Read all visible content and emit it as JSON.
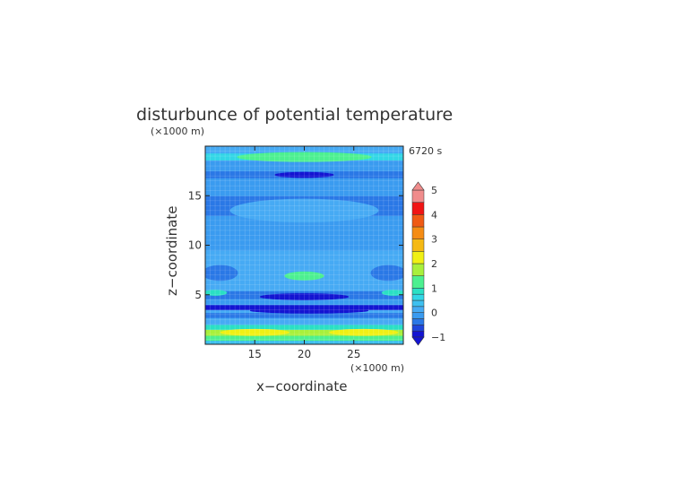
{
  "chart_data": {
    "type": "heatmap",
    "title": "disturbunce of potential temperature",
    "time_label": "6720 s",
    "xlabel": "x−coordinate",
    "ylabel": "z−coordinate",
    "x_unit": "(×1000 m)",
    "y_unit": "(×1000 m)",
    "xlim": [
      10,
      30
    ],
    "ylim": [
      0,
      20
    ],
    "x_ticks": [
      15,
      20,
      25
    ],
    "y_ticks": [
      5,
      10,
      15
    ],
    "colorbar": {
      "min": -1,
      "max": 5,
      "tick_values": [
        -1,
        0,
        1,
        2,
        3,
        4,
        5
      ],
      "tick_labels": [
        "−1",
        "0",
        "1",
        "2",
        "3",
        "4",
        "5"
      ],
      "levels": [
        {
          "from": -1.0,
          "to": -0.75,
          "color": "#1414d2"
        },
        {
          "from": -0.75,
          "to": -0.5,
          "color": "#1e46dc"
        },
        {
          "from": -0.5,
          "to": -0.25,
          "color": "#2a78e6"
        },
        {
          "from": -0.25,
          "to": 0.0,
          "color": "#3a9bf0"
        },
        {
          "from": 0.0,
          "to": 0.25,
          "color": "#46aaf4"
        },
        {
          "from": 0.25,
          "to": 0.5,
          "color": "#3ec0f0"
        },
        {
          "from": 0.5,
          "to": 0.75,
          "color": "#32d6e6"
        },
        {
          "from": 0.75,
          "to": 1.0,
          "color": "#2ae0c4"
        },
        {
          "from": 1.0,
          "to": 1.5,
          "color": "#4cf090"
        },
        {
          "from": 1.5,
          "to": 2.0,
          "color": "#a8f03c"
        },
        {
          "from": 2.0,
          "to": 2.5,
          "color": "#f0f014"
        },
        {
          "from": 2.5,
          "to": 3.0,
          "color": "#f5b914"
        },
        {
          "from": 3.0,
          "to": 3.5,
          "color": "#f58c14"
        },
        {
          "from": 3.5,
          "to": 4.0,
          "color": "#f05a14"
        },
        {
          "from": 4.0,
          "to": 4.5,
          "color": "#f01414"
        },
        {
          "from": 4.5,
          "to": 5.0,
          "color": "#f08c8c"
        }
      ]
    },
    "bands": [
      {
        "z": [
          0.0,
          0.4
        ],
        "value": 0.3
      },
      {
        "z": [
          0.4,
          0.9
        ],
        "value": 1.0
      },
      {
        "z": [
          0.9,
          1.5
        ],
        "value": 1.8
      },
      {
        "z": [
          1.5,
          2.0
        ],
        "value": 0.9
      },
      {
        "z": [
          2.0,
          2.7
        ],
        "value": 0.2
      },
      {
        "z": [
          2.7,
          3.2
        ],
        "value": -0.4
      },
      {
        "z": [
          3.2,
          3.5
        ],
        "value": 0.0
      },
      {
        "z": [
          3.5,
          4.0
        ],
        "value": -0.8
      },
      {
        "z": [
          4.0,
          4.6
        ],
        "value": -0.2
      },
      {
        "z": [
          4.6,
          5.4
        ],
        "value": -0.5
      },
      {
        "z": [
          5.4,
          6.5
        ],
        "value": 0.0
      },
      {
        "z": [
          6.5,
          7.5
        ],
        "value": 0.2
      },
      {
        "z": [
          7.5,
          9.5
        ],
        "value": 0.0
      },
      {
        "z": [
          9.5,
          11.5
        ],
        "value": -0.25
      },
      {
        "z": [
          11.5,
          13.0
        ],
        "value": -0.1
      },
      {
        "z": [
          13.0,
          15.0
        ],
        "value": -0.35
      },
      {
        "z": [
          15.0,
          16.8
        ],
        "value": -0.15
      },
      {
        "z": [
          16.8,
          17.5
        ],
        "value": -0.5
      },
      {
        "z": [
          17.5,
          18.6
        ],
        "value": -0.2
      },
      {
        "z": [
          18.6,
          19.3
        ],
        "value": 0.5
      },
      {
        "z": [
          19.3,
          20.0
        ],
        "value": 0.1
      }
    ],
    "blobs": [
      {
        "x": 20.0,
        "z": 18.9,
        "rx": 6.8,
        "rz": 0.5,
        "value": 1.1
      },
      {
        "x": 20.0,
        "z": 17.1,
        "rx": 3.0,
        "rz": 0.3,
        "value": -0.9
      },
      {
        "x": 20.0,
        "z": 13.5,
        "rx": 7.5,
        "rz": 1.2,
        "value": 0.0
      },
      {
        "x": 20.0,
        "z": 6.9,
        "rx": 2.0,
        "rz": 0.45,
        "value": 1.2
      },
      {
        "x": 20.0,
        "z": 4.8,
        "rx": 4.5,
        "rz": 0.35,
        "value": -0.9
      },
      {
        "x": 20.5,
        "z": 3.4,
        "rx": 6.0,
        "rz": 0.3,
        "value": -0.9
      },
      {
        "x": 11.5,
        "z": 7.2,
        "rx": 1.8,
        "rz": 0.8,
        "value": -0.4
      },
      {
        "x": 28.5,
        "z": 7.2,
        "rx": 1.8,
        "rz": 0.8,
        "value": -0.4
      },
      {
        "x": 11.0,
        "z": 5.2,
        "rx": 1.2,
        "rz": 0.3,
        "value": 0.9
      },
      {
        "x": 29.0,
        "z": 5.2,
        "rx": 1.2,
        "rz": 0.3,
        "value": 0.9
      },
      {
        "x": 15.0,
        "z": 1.2,
        "rx": 3.5,
        "rz": 0.35,
        "value": 2.2
      },
      {
        "x": 26.0,
        "z": 1.2,
        "rx": 3.5,
        "rz": 0.35,
        "value": 2.2
      }
    ]
  }
}
